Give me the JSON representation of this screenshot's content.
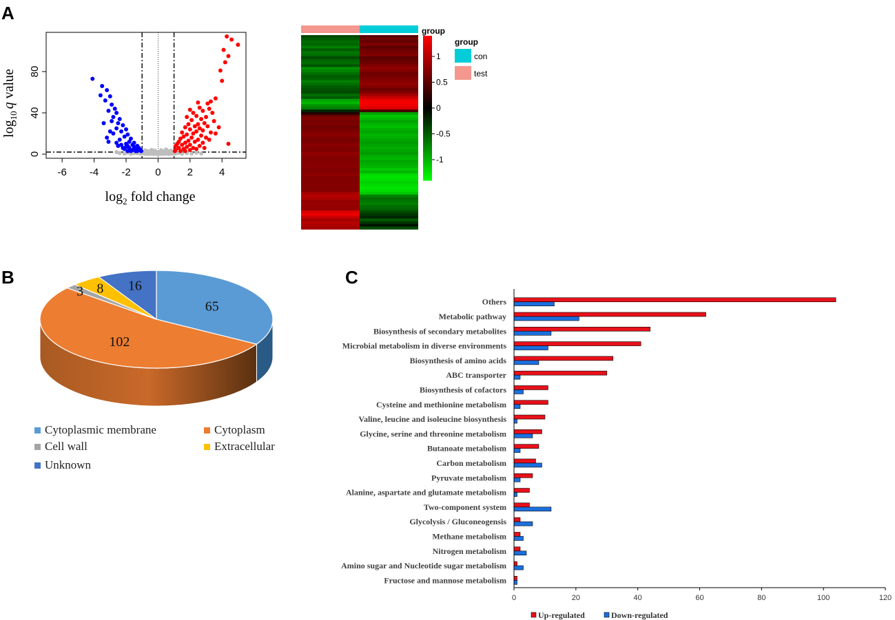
{
  "panels": {
    "a": "A",
    "b": "B",
    "c": "C"
  },
  "chart_data": [
    {
      "type": "scatter",
      "name": "volcano",
      "xlabel_base": "log",
      "xlabel_sub": "2",
      "xlabel_rest": " fold change",
      "ylabel_base": "log",
      "ylabel_sub": "10",
      "ylabel_q": "q",
      "ylabel_rest": " value",
      "xlim": [
        -7,
        5.5
      ],
      "ylim": [
        -4,
        118
      ],
      "xticks": [
        -6,
        -4,
        -2,
        0,
        2,
        4
      ],
      "yticks": [
        0,
        40,
        80
      ],
      "vlines": [
        -1,
        1
      ],
      "center_line": 0,
      "hline": 2,
      "colors": {
        "up": "#ff0000",
        "down": "#0000ff",
        "ns": "#bebebe"
      },
      "series": [
        {
          "name": "down",
          "points": [
            [
              -4.1,
              73
            ],
            [
              -3.5,
              66
            ],
            [
              -3.2,
              62
            ],
            [
              -3.6,
              57
            ],
            [
              -3.0,
              56
            ],
            [
              -3.3,
              52
            ],
            [
              -2.9,
              48
            ],
            [
              -2.7,
              44
            ],
            [
              -3.1,
              42
            ],
            [
              -2.6,
              40
            ],
            [
              -2.8,
              36
            ],
            [
              -2.4,
              34
            ],
            [
              -2.9,
              32
            ],
            [
              -2.5,
              30
            ],
            [
              -2.2,
              28
            ],
            [
              -2.6,
              25
            ],
            [
              -2.0,
              24
            ],
            [
              -2.3,
              22
            ],
            [
              -2.8,
              20
            ],
            [
              -1.9,
              19
            ],
            [
              -2.1,
              17
            ],
            [
              -3.2,
              16
            ],
            [
              -1.7,
              15
            ],
            [
              -2.4,
              14
            ],
            [
              -1.8,
              12
            ],
            [
              -3.1,
              12
            ],
            [
              -1.5,
              11
            ],
            [
              -2.0,
              10
            ],
            [
              -1.6,
              9
            ],
            [
              -2.3,
              9
            ],
            [
              -1.3,
              8
            ],
            [
              -1.9,
              8
            ],
            [
              -1.5,
              7
            ],
            [
              -1.2,
              6
            ],
            [
              -1.8,
              6
            ],
            [
              -2.1,
              5
            ],
            [
              -1.4,
              5
            ],
            [
              -1.1,
              4
            ],
            [
              -1.6,
              4
            ],
            [
              -1.9,
              3
            ],
            [
              -1.3,
              3
            ],
            [
              -2.5,
              8
            ],
            [
              -2.2,
              6
            ],
            [
              -1.7,
              3
            ],
            [
              -1.05,
              3
            ],
            [
              -3.4,
              30
            ],
            [
              -3.0,
              22
            ],
            [
              -2.6,
              11
            ],
            [
              -2.0,
              7
            ],
            [
              -1.4,
              3
            ]
          ]
        },
        {
          "name": "up",
          "points": [
            [
              4.3,
              114
            ],
            [
              4.6,
              111
            ],
            [
              5.0,
              106
            ],
            [
              4.1,
              101
            ],
            [
              4.4,
              95
            ],
            [
              4.2,
              89
            ],
            [
              3.9,
              81
            ],
            [
              4.0,
              71
            ],
            [
              3.6,
              54
            ],
            [
              3.3,
              51
            ],
            [
              2.5,
              50
            ],
            [
              3.1,
              49
            ],
            [
              2.6,
              45
            ],
            [
              3.2,
              44
            ],
            [
              2.0,
              43
            ],
            [
              2.8,
              42
            ],
            [
              2.2,
              40
            ],
            [
              3.4,
              40
            ],
            [
              2.4,
              37
            ],
            [
              1.8,
              36
            ],
            [
              3.0,
              36
            ],
            [
              2.7,
              34
            ],
            [
              2.1,
              33
            ],
            [
              3.5,
              32
            ],
            [
              2.9,
              30
            ],
            [
              2.5,
              29
            ],
            [
              1.9,
              29
            ],
            [
              2.3,
              27
            ],
            [
              3.1,
              27
            ],
            [
              1.7,
              26
            ],
            [
              2.6,
              25
            ],
            [
              2.0,
              24
            ],
            [
              2.8,
              23
            ],
            [
              2.4,
              22
            ],
            [
              1.5,
              21
            ],
            [
              3.3,
              21
            ],
            [
              2.2,
              20
            ],
            [
              1.8,
              19
            ],
            [
              2.7,
              18
            ],
            [
              1.6,
              17
            ],
            [
              2.1,
              16
            ],
            [
              3.0,
              16
            ],
            [
              1.4,
              15
            ],
            [
              2.5,
              14
            ],
            [
              1.9,
              13
            ],
            [
              1.3,
              12
            ],
            [
              2.3,
              12
            ],
            [
              1.7,
              11
            ],
            [
              2.8,
              11
            ],
            [
              1.2,
              10
            ],
            [
              2.0,
              9
            ],
            [
              1.5,
              9
            ],
            [
              1.1,
              8
            ],
            [
              2.6,
              8
            ],
            [
              1.8,
              7
            ],
            [
              1.3,
              6
            ],
            [
              2.2,
              6
            ],
            [
              1.6,
              5
            ],
            [
              1.1,
              4
            ],
            [
              2.0,
              4
            ],
            [
              1.4,
              3
            ],
            [
              1.05,
              3
            ],
            [
              1.7,
              3
            ],
            [
              2.4,
              5
            ],
            [
              3.6,
              20
            ],
            [
              3.8,
              26
            ],
            [
              4.4,
              10
            ],
            [
              3.2,
              14
            ],
            [
              2.9,
              6
            ]
          ]
        },
        {
          "name": "ns",
          "points": [
            [
              -2.6,
              2
            ],
            [
              -2.4,
              1
            ],
            [
              -2.1,
              0.5
            ],
            [
              -1.9,
              1.5
            ],
            [
              -1.7,
              0.3
            ],
            [
              -1.5,
              1
            ],
            [
              -1.3,
              0.8
            ],
            [
              -1.1,
              0.4
            ],
            [
              -0.95,
              1.7
            ],
            [
              -0.9,
              0.6
            ],
            [
              -0.85,
              1.2
            ],
            [
              -0.8,
              1.4
            ],
            [
              -0.75,
              0.2
            ],
            [
              -0.7,
              0.9
            ],
            [
              -0.65,
              0.5
            ],
            [
              -0.6,
              1.1
            ],
            [
              -0.55,
              0.3
            ],
            [
              -0.5,
              0.7
            ],
            [
              -0.45,
              1.3
            ],
            [
              -0.4,
              0.4
            ],
            [
              -0.35,
              0.8
            ],
            [
              -0.3,
              0.2
            ],
            [
              -0.25,
              0.6
            ],
            [
              -0.2,
              1.0
            ],
            [
              -0.15,
              0.3
            ],
            [
              -0.1,
              0.5
            ],
            [
              -0.05,
              0.2
            ],
            [
              0.0,
              0.4
            ],
            [
              0.05,
              0.1
            ],
            [
              0.1,
              0.6
            ],
            [
              0.15,
              0.3
            ],
            [
              0.2,
              0.9
            ],
            [
              0.25,
              0.2
            ],
            [
              0.3,
              0.7
            ],
            [
              0.35,
              0.4
            ],
            [
              0.4,
              1.1
            ],
            [
              0.45,
              0.3
            ],
            [
              0.5,
              0.8
            ],
            [
              0.55,
              1.4
            ],
            [
              0.6,
              0.5
            ],
            [
              0.65,
              1.0
            ],
            [
              0.7,
              0.2
            ],
            [
              0.75,
              1.3
            ],
            [
              0.8,
              0.6
            ],
            [
              0.85,
              1.6
            ],
            [
              0.9,
              0.9
            ],
            [
              0.95,
              0.4
            ],
            [
              1.1,
              0.7
            ],
            [
              1.3,
              1.2
            ],
            [
              1.5,
              0.3
            ],
            [
              1.8,
              1.0
            ],
            [
              2.1,
              0.5
            ],
            [
              2.4,
              1.4
            ],
            [
              2.7,
              0.6
            ],
            [
              -0.3,
              2.5
            ],
            [
              0.3,
              2.6
            ],
            [
              -0.6,
              2.8
            ],
            [
              0.6,
              3.0
            ],
            [
              -0.2,
              3.4
            ],
            [
              0.2,
              3.8
            ],
            [
              -0.4,
              4.1
            ],
            [
              0.5,
              4.5
            ],
            [
              0.0,
              2.2
            ],
            [
              0.8,
              3.3
            ],
            [
              -0.8,
              3.6
            ]
          ]
        }
      ]
    },
    {
      "type": "heatmap",
      "name": "expression-heatmap",
      "columns": [
        "test",
        "con"
      ],
      "column_colors": {
        "test": "#f4978e",
        "con": "#00cdd8"
      },
      "header_label": "group",
      "legend_title": "group",
      "legend_items": [
        {
          "label": "con",
          "color": "#00cdd8"
        },
        {
          "label": "test",
          "color": "#f4978e"
        }
      ],
      "colorbar_ticks": [
        "1",
        "0.5",
        "0",
        "-0.5",
        "-1"
      ],
      "colorbar_values": [
        1,
        0.5,
        0,
        -0.5,
        -1
      ],
      "colorbar_range": [
        -1.4,
        1.4
      ],
      "rows_test": [
        -0.4,
        -0.5,
        -0.6,
        -0.55,
        -0.7,
        -0.5,
        -0.65,
        -0.6,
        -0.4,
        -0.55,
        -0.6,
        -0.45,
        -0.8,
        -0.7,
        -0.6,
        -0.5,
        -0.55,
        -0.7,
        -0.6,
        -0.5,
        -0.45,
        -0.4,
        -0.6,
        -0.5,
        -0.9,
        -1.0,
        -0.8,
        -0.7,
        -0.2,
        0.2,
        0.6,
        0.7,
        0.65,
        0.7,
        0.6,
        0.65,
        0.7,
        0.75,
        0.7,
        0.65,
        0.7,
        0.75,
        0.7,
        0.7,
        0.8,
        0.75,
        0.7,
        0.72,
        0.74,
        0.76,
        0.7,
        0.72,
        0.78,
        0.7,
        0.72,
        0.7,
        0.74,
        0.7,
        0.72,
        0.9,
        1.0,
        0.95,
        0.8,
        0.85,
        0.8,
        0.82,
        1.2,
        1.3,
        1.1,
        0.9,
        1.0,
        0.95,
        0.9
      ],
      "rows_con": [
        0.5,
        0.6,
        0.55,
        0.7,
        0.5,
        0.6,
        0.65,
        0.7,
        0.5,
        0.55,
        0.6,
        0.7,
        0.8,
        0.7,
        0.6,
        0.65,
        0.7,
        0.75,
        0.8,
        0.7,
        0.6,
        0.7,
        0.9,
        1.1,
        1.3,
        1.35,
        1.3,
        1.2,
        0.4,
        -0.9,
        -1.1,
        -1.0,
        -0.9,
        -1.0,
        -1.05,
        -0.95,
        -0.9,
        -1.0,
        -0.95,
        -0.9,
        -0.85,
        -0.9,
        -0.95,
        -0.9,
        -0.85,
        -0.95,
        -1.0,
        -0.9,
        -0.95,
        -1.0,
        -1.1,
        -1.0,
        -1.2,
        -1.25,
        -1.2,
        -1.15,
        -1.2,
        -1.25,
        -1.2,
        -1.1,
        -0.7,
        -0.6,
        -0.65,
        -0.7,
        -0.6,
        -0.55,
        -0.4,
        -0.3,
        -0.2,
        -0.5,
        -0.3,
        -0.1,
        -0.4
      ]
    },
    {
      "type": "pie",
      "name": "subcellular-location",
      "labels": [
        "Cytoplasmic membrane",
        "Cytoplasm",
        "Cell wall",
        "Extracellular",
        "Unknown"
      ],
      "values": [
        65,
        102,
        3,
        8,
        16
      ],
      "colors": [
        "#5b9bd5",
        "#ed7d31",
        "#a5a5a5",
        "#ffc000",
        "#4472c4"
      ],
      "side_colors": [
        "#2a5a86",
        "#8a4a1c",
        "#6b6b6b",
        "#9c7700",
        "#243f75"
      ],
      "value_labels": [
        "65",
        "102",
        "3",
        "8",
        "16"
      ]
    },
    {
      "type": "bar",
      "name": "kegg-pathways",
      "orientation": "horizontal",
      "categories": [
        "Others",
        "Metabolic pathway",
        "Biosynthesis of secondary metabolites",
        "Microbial metabolism in diverse environments",
        "Biosynthesis of amino acids",
        "ABC transporter",
        "Biosynthesis of cofactors",
        "Cysteine and methionine metabolism",
        "Valine, leucine and isoleucine biosynthesis",
        "Glycine, serine and threonine metabolism",
        "Butanoate metabolism",
        "Carbon metabolism",
        "Pyruvate metabolism",
        "Alanine, aspartate and glutamate metabolism",
        "Two-component system",
        "Glycolysis / Gluconeogensis",
        "Methane metabolism",
        "Nitrogen metabolism",
        "Amino sugar and Nucleotide sugar metabolism",
        "Fructose and mannose metabolism"
      ],
      "series": [
        {
          "name": "Up-regulated",
          "color": "#e8101a",
          "values": [
            104,
            62,
            44,
            41,
            32,
            30,
            11,
            11,
            10,
            9,
            8,
            7,
            6,
            5,
            5,
            2,
            2,
            2,
            1,
            1
          ]
        },
        {
          "name": "Down-regulated",
          "color": "#1c6fde",
          "values": [
            13,
            21,
            12,
            11,
            8,
            2,
            3,
            2,
            1,
            6,
            2,
            9,
            2,
            1,
            12,
            6,
            3,
            4,
            3,
            1
          ]
        }
      ],
      "xlim": [
        0,
        120
      ],
      "xticks": [
        0,
        20,
        40,
        60,
        80,
        100,
        120
      ]
    }
  ]
}
